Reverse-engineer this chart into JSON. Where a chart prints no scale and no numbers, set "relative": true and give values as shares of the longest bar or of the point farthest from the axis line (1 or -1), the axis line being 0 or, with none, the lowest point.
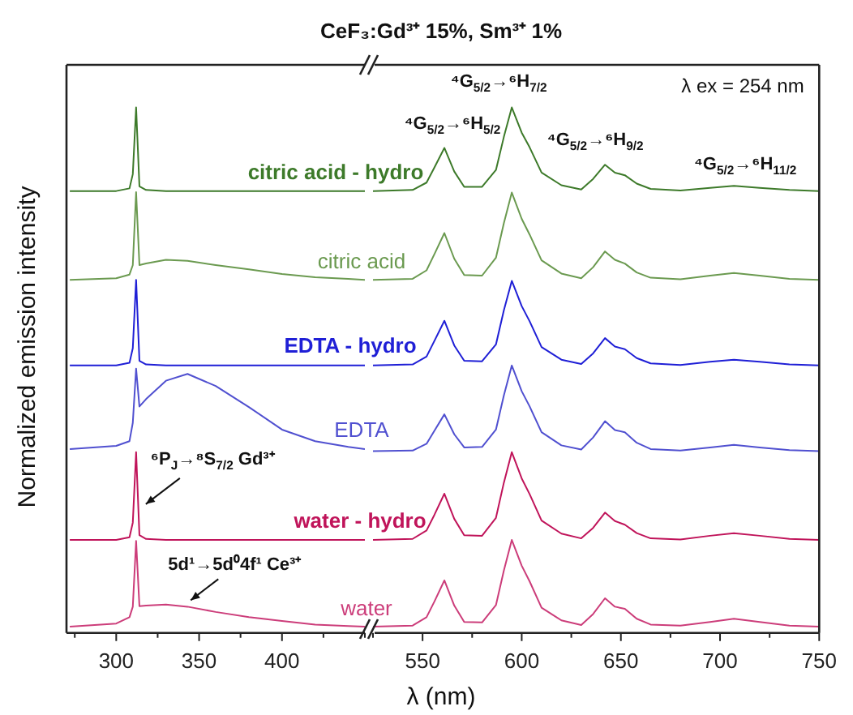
{
  "chart_data": [
    {
      "type": "line",
      "ylabel": "Normalized emission intensity",
      "relative": true,
      "x": [
        272,
        300,
        308,
        310,
        312,
        314,
        318,
        330,
        343,
        360,
        380,
        400,
        420,
        440,
        450
      ],
      "xlim": [
        270,
        450
      ],
      "xticks": [
        {
          "value": 275,
          "label": null
        },
        300,
        {
          "value": 325,
          "label": null
        },
        350,
        {
          "value": 375,
          "label": null
        },
        400,
        {
          "value": 425,
          "label": null
        },
        {
          "value": 450,
          "label": null
        }
      ],
      "series": [
        {
          "name": "citric acid - hydro",
          "color": "#3d7a2a",
          "values": [
            0.841,
            0.841,
            0.846,
            0.873,
            1.0,
            0.85,
            0.843,
            0.841,
            0.841,
            0.841,
            0.841,
            0.841,
            0.841,
            0.841,
            0.841
          ]
        },
        {
          "name": "citric acid",
          "color": "#6b9a50",
          "values": [
            0.672,
            0.675,
            0.682,
            0.7,
            0.839,
            0.7,
            0.703,
            0.71,
            0.708,
            0.7,
            0.692,
            0.683,
            0.677,
            0.674,
            0.672
          ]
        },
        {
          "name": "EDTA - hydro",
          "color": "#1f1fd6",
          "values": [
            0.509,
            0.509,
            0.514,
            0.542,
            0.672,
            0.518,
            0.511,
            0.509,
            0.509,
            0.509,
            0.509,
            0.509,
            0.509,
            0.509,
            0.509
          ]
        },
        {
          "name": "EDTA",
          "color": "#5050d0",
          "values": [
            0.35,
            0.356,
            0.365,
            0.4,
            0.503,
            0.431,
            0.445,
            0.48,
            0.493,
            0.47,
            0.43,
            0.387,
            0.365,
            0.354,
            0.35
          ]
        },
        {
          "name": "water - hydro",
          "color": "#c0145a",
          "values": [
            0.177,
            0.177,
            0.182,
            0.21,
            0.344,
            0.186,
            0.179,
            0.177,
            0.177,
            0.177,
            0.177,
            0.177,
            0.177,
            0.177,
            0.177
          ]
        },
        {
          "name": "water",
          "color": "#cc3d7a",
          "values": [
            0.012,
            0.018,
            0.03,
            0.05,
            0.175,
            0.051,
            0.052,
            0.054,
            0.05,
            0.04,
            0.03,
            0.023,
            0.016,
            0.013,
            0.012
          ]
        }
      ],
      "annotations": [
        {
          "text": "⁶P$_{J}$→⁸S$_{7/2}$ Gd³⁺",
          "x": 312,
          "y": 0.239
        },
        {
          "text": "5d¹→5d⁰4f¹ Ce³⁺",
          "x": 343,
          "y": 0.05
        }
      ]
    },
    {
      "type": "line",
      "title": "CeF₃:Gd³⁺ 15%, Sm³⁺ 1%",
      "xlabel": "λ (nm)",
      "relative": true,
      "x": [
        525,
        545,
        552,
        556,
        561,
        566,
        571,
        580,
        587,
        591,
        595,
        600,
        604,
        610,
        620,
        630,
        636,
        642,
        647,
        652,
        658,
        665,
        680,
        695,
        707,
        720,
        735,
        750
      ],
      "xlim": [
        525,
        750
      ],
      "xticks": [
        {
          "value": 525,
          "label": null
        },
        550,
        {
          "value": 575,
          "label": null
        },
        600,
        {
          "value": 625,
          "label": null
        },
        650,
        {
          "value": 675,
          "label": null
        },
        700,
        {
          "value": 725,
          "label": null
        },
        750
      ],
      "series": [
        {
          "color": "#3d7a2a",
          "values": [
            0.841,
            0.843,
            0.857,
            0.886,
            0.923,
            0.878,
            0.849,
            0.849,
            0.881,
            0.944,
            1.0,
            0.952,
            0.924,
            0.876,
            0.852,
            0.844,
            0.864,
            0.891,
            0.876,
            0.871,
            0.855,
            0.845,
            0.842,
            0.847,
            0.851,
            0.847,
            0.843,
            0.841
          ]
        },
        {
          "color": "#6b9a50",
          "values": [
            0.672,
            0.674,
            0.69,
            0.721,
            0.761,
            0.712,
            0.681,
            0.68,
            0.714,
            0.78,
            0.838,
            0.788,
            0.758,
            0.709,
            0.684,
            0.675,
            0.696,
            0.726,
            0.71,
            0.703,
            0.686,
            0.676,
            0.673,
            0.68,
            0.685,
            0.68,
            0.674,
            0.672
          ]
        },
        {
          "color": "#1f1fd6",
          "values": [
            0.509,
            0.511,
            0.526,
            0.556,
            0.594,
            0.547,
            0.518,
            0.517,
            0.549,
            0.614,
            0.67,
            0.622,
            0.593,
            0.544,
            0.52,
            0.512,
            0.532,
            0.561,
            0.545,
            0.54,
            0.523,
            0.513,
            0.51,
            0.516,
            0.52,
            0.516,
            0.511,
            0.509
          ]
        },
        {
          "color": "#5050d0",
          "values": [
            0.346,
            0.347,
            0.36,
            0.385,
            0.416,
            0.378,
            0.353,
            0.354,
            0.387,
            0.452,
            0.509,
            0.46,
            0.431,
            0.382,
            0.357,
            0.349,
            0.372,
            0.403,
            0.386,
            0.382,
            0.362,
            0.35,
            0.347,
            0.353,
            0.358,
            0.353,
            0.348,
            0.346
          ]
        },
        {
          "color": "#c0145a",
          "values": [
            0.177,
            0.179,
            0.195,
            0.225,
            0.265,
            0.217,
            0.186,
            0.185,
            0.219,
            0.286,
            0.344,
            0.294,
            0.264,
            0.214,
            0.189,
            0.18,
            0.2,
            0.229,
            0.213,
            0.206,
            0.19,
            0.18,
            0.178,
            0.185,
            0.19,
            0.185,
            0.179,
            0.177
          ]
        },
        {
          "color": "#cc3d7a",
          "values": [
            0.012,
            0.014,
            0.03,
            0.06,
            0.1,
            0.052,
            0.021,
            0.02,
            0.053,
            0.119,
            0.177,
            0.128,
            0.098,
            0.048,
            0.024,
            0.015,
            0.036,
            0.066,
            0.05,
            0.046,
            0.027,
            0.016,
            0.014,
            0.021,
            0.027,
            0.021,
            0.014,
            0.012
          ]
        }
      ],
      "annotations": [
        {
          "text": "⁴G$_{5/2}$→⁶H$_{5/2}$",
          "x": 561,
          "y": 0.923
        },
        {
          "text": "⁴G$_{5/2}$→⁶H$_{7/2}$",
          "x": 595,
          "y": 1.0
        },
        {
          "text": "⁴G$_{5/2}$→⁶H$_{9/2}$",
          "x": 642,
          "y": 0.891
        },
        {
          "text": "⁴G$_{5/2}$→⁶H$_{11/2}$",
          "x": 707,
          "y": 0.851
        },
        "λ ex = 254 nm"
      ]
    }
  ]
}
